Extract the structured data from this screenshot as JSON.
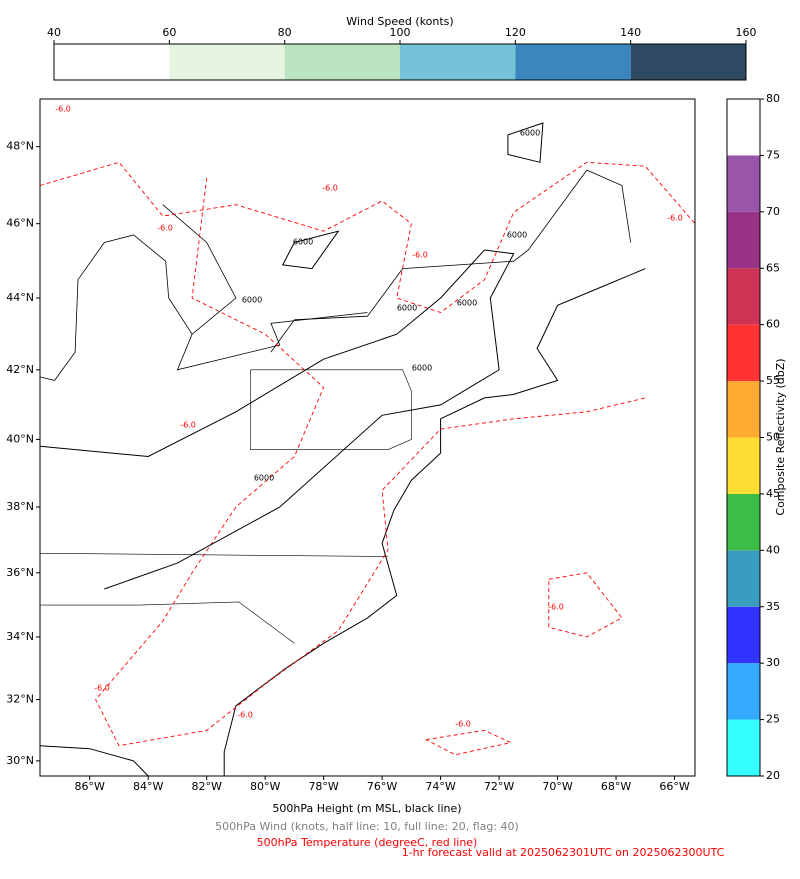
{
  "wind_colorbar": {
    "title": "Wind Speed (konts)",
    "lim": [
      40,
      160
    ],
    "ticks": [
      40,
      60,
      80,
      100,
      120,
      140,
      160
    ],
    "bounds": [
      40,
      60,
      80,
      100,
      120,
      140,
      160
    ],
    "colors": [
      "#ffffff",
      "#e5f5e0",
      "#bbe4c0",
      "#74c3d9",
      "#3a87c0",
      "#2e4a63"
    ]
  },
  "reflectivity_colorbar": {
    "label": "Composite Reflectivity (dbZ)",
    "lim": [
      20,
      80
    ],
    "ticks": [
      20,
      25,
      30,
      35,
      40,
      45,
      50,
      55,
      60,
      65,
      70,
      75,
      80
    ],
    "bounds": [
      20,
      25,
      30,
      35,
      40,
      45,
      50,
      55,
      60,
      65,
      70,
      75,
      80
    ],
    "colors": [
      "#33ffff",
      "#33aaff",
      "#3333ff",
      "#3a9dc0",
      "#3cbe46",
      "#ffdd33",
      "#ffaa33",
      "#ff3333",
      "#cc3355",
      "#993388",
      "#9955aa",
      "#ffffff"
    ]
  },
  "map": {
    "xlim": [
      -87.7,
      -65.3
    ],
    "ylim": [
      29.5,
      49.2
    ],
    "xticks": [
      {
        "value": -86,
        "label": "86°W"
      },
      {
        "value": -84,
        "label": "84°W"
      },
      {
        "value": -82,
        "label": "82°W"
      },
      {
        "value": -80,
        "label": "80°W"
      },
      {
        "value": -78,
        "label": "78°W"
      },
      {
        "value": -76,
        "label": "76°W"
      },
      {
        "value": -74,
        "label": "74°W"
      },
      {
        "value": -72,
        "label": "72°W"
      },
      {
        "value": -70,
        "label": "70°W"
      },
      {
        "value": -68,
        "label": "68°W"
      },
      {
        "value": -66,
        "label": "66°W"
      }
    ],
    "yticks": [
      {
        "value": 30,
        "label": "30°N"
      },
      {
        "value": 32,
        "label": "32°N"
      },
      {
        "value": 34,
        "label": "34°N"
      },
      {
        "value": 36,
        "label": "36°N"
      },
      {
        "value": 38,
        "label": "38°N"
      },
      {
        "value": 40,
        "label": "40°N"
      },
      {
        "value": 42,
        "label": "42°N"
      },
      {
        "value": 44,
        "label": "44°N"
      },
      {
        "value": 46,
        "label": "46°N"
      },
      {
        "value": 48,
        "label": "48°N"
      }
    ],
    "height_labels": [
      "6000",
      "6000",
      "6000",
      "6000",
      "6000",
      "6000",
      "6000",
      "6000"
    ],
    "temperature_labels": [
      "-6.0",
      "-6.0",
      "-6.0",
      "-6.0",
      "-6.0",
      "-6.0",
      "-6.0",
      "-6.0",
      "-6.0",
      "-6.0"
    ]
  },
  "captions": {
    "height": "500hPa Height (m MSL, black line)",
    "wind": "500hPa Wind (knots, half line: 10, full line: 20, flag: 40)",
    "temperature": "500hPa Temperature (degreeC, red line)",
    "valid": "1-hr forecast valid at 2025062301UTC on 2025062300UTC"
  }
}
